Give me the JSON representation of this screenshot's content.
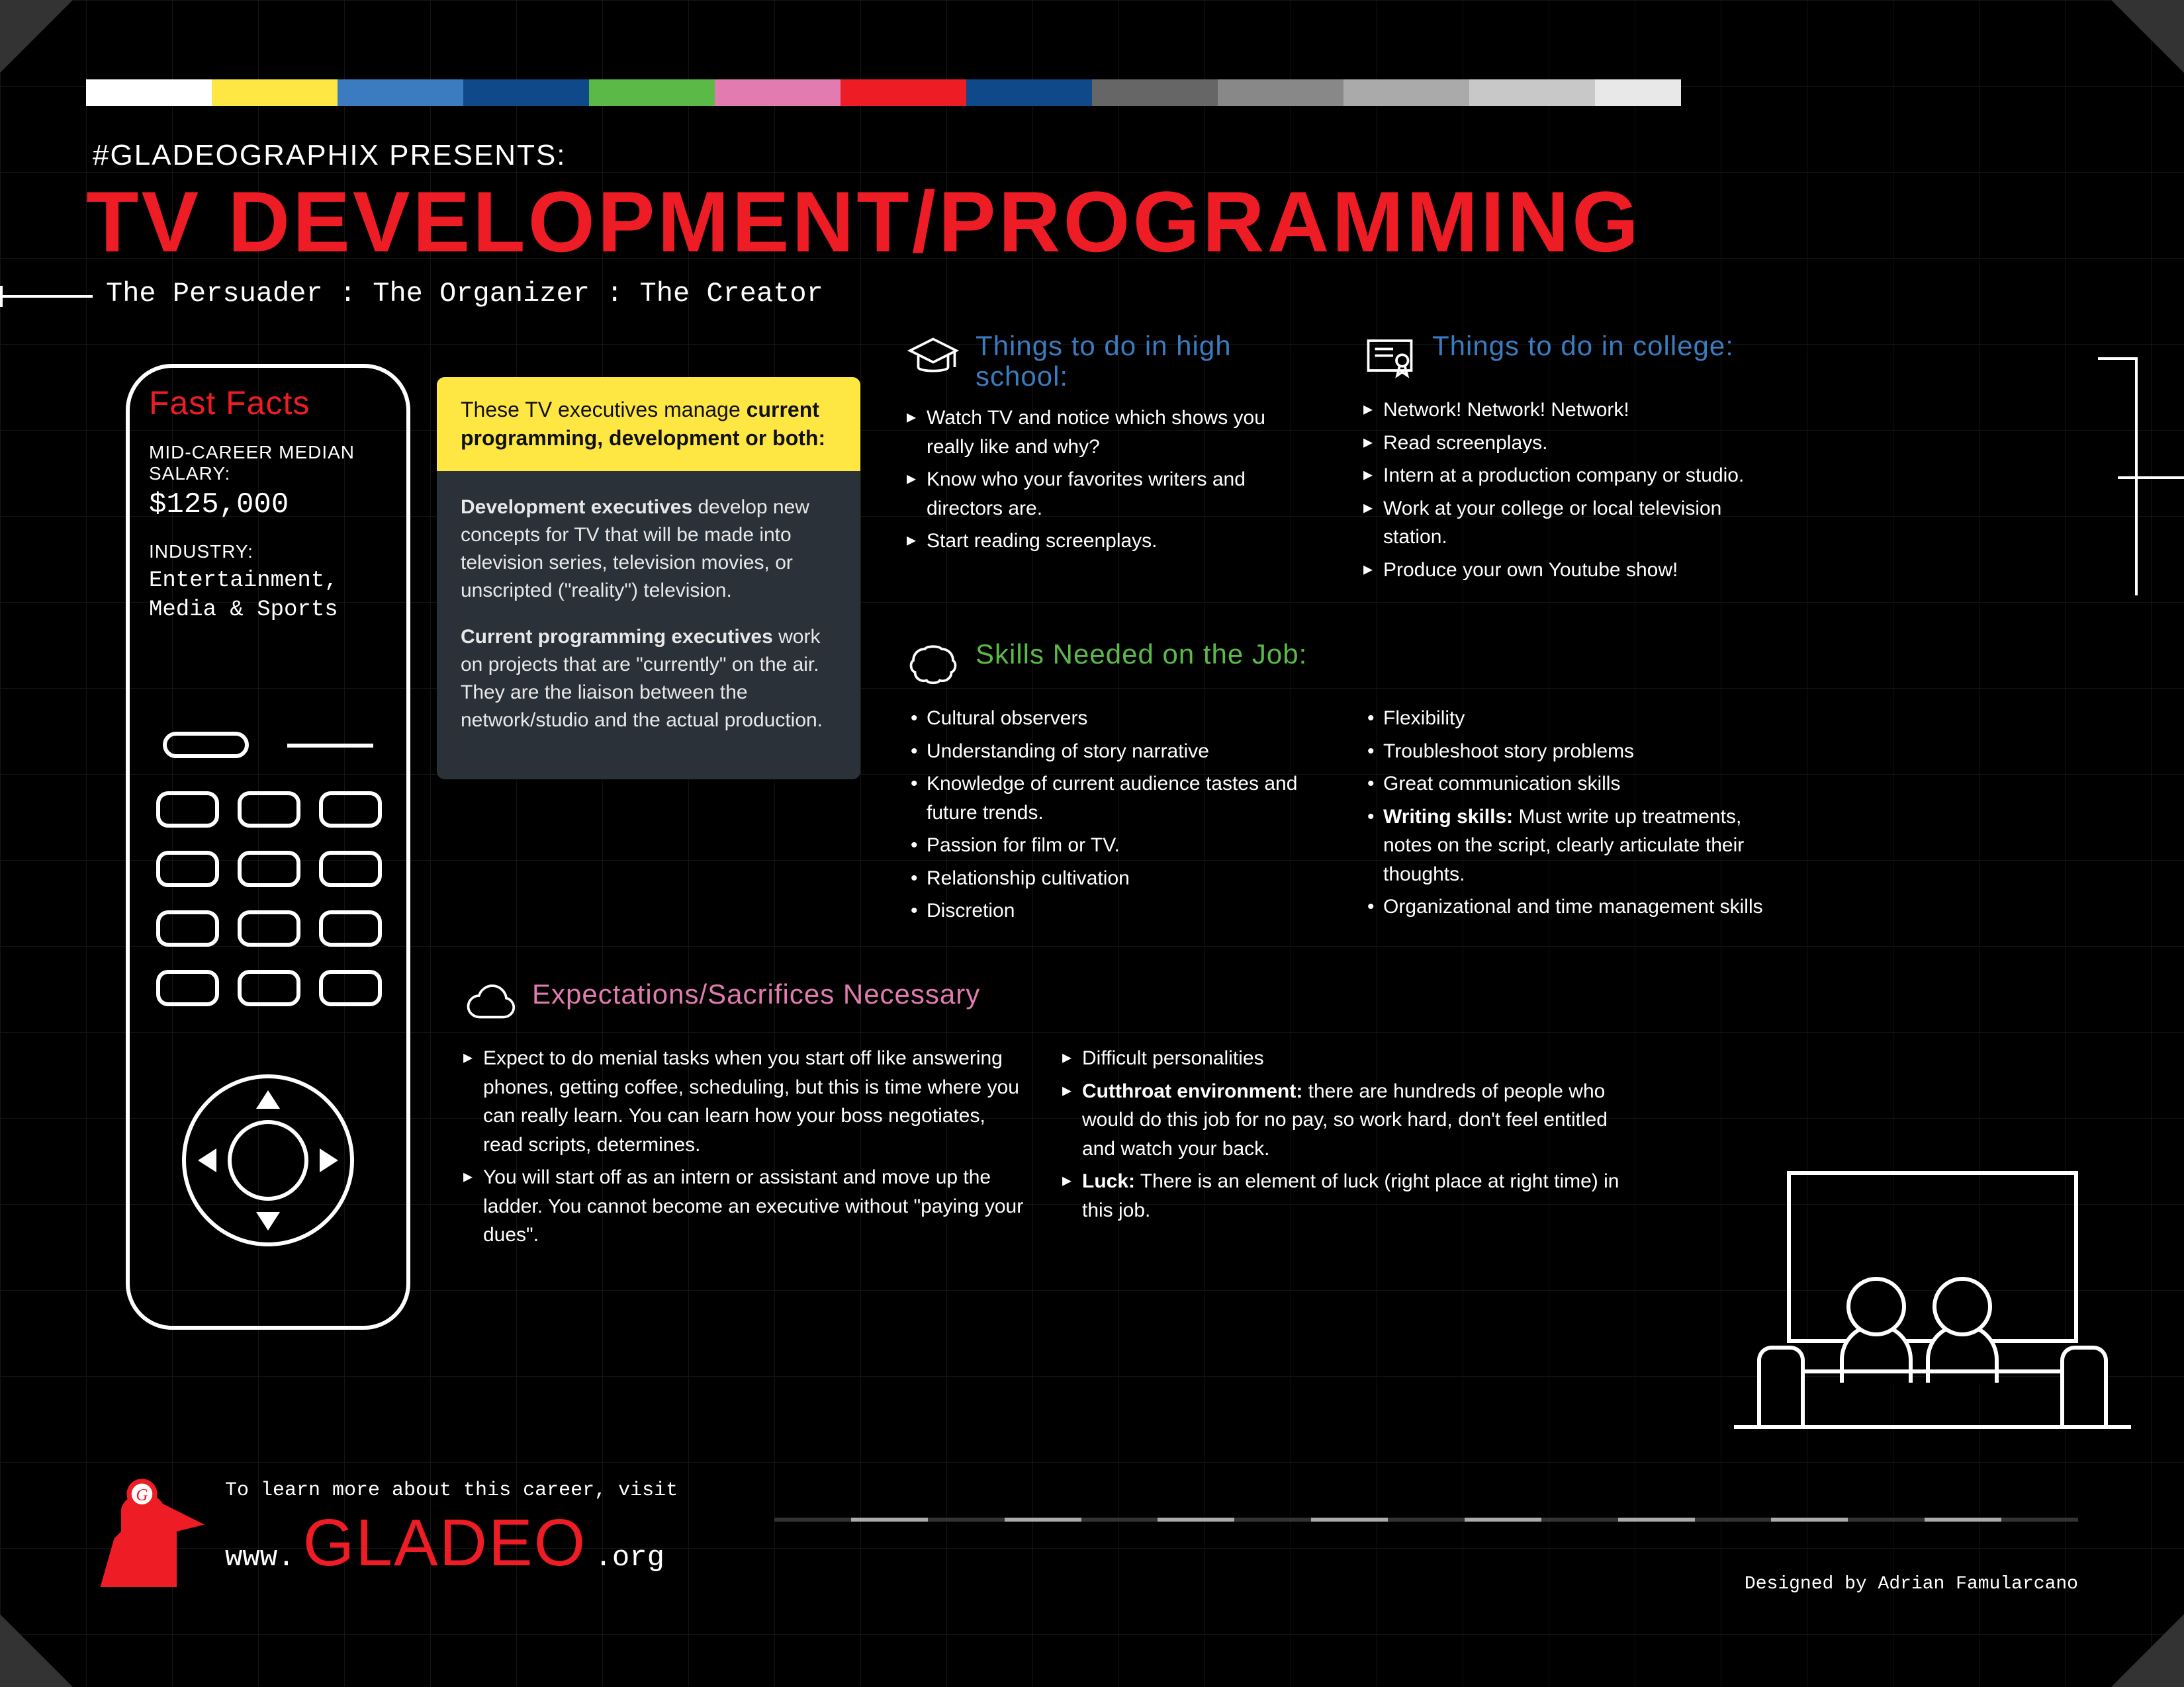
{
  "colorbar": {
    "segments": [
      {
        "color": "#ffffff",
        "w": 190
      },
      {
        "color": "#ffe743",
        "w": 190
      },
      {
        "color": "#3b7bbf",
        "w": 190
      },
      {
        "color": "#10498a",
        "w": 190
      },
      {
        "color": "#5bba47",
        "w": 190
      },
      {
        "color": "#e17bb0",
        "w": 190
      },
      {
        "color": "#ee1c25",
        "w": 190
      },
      {
        "color": "#10498a",
        "w": 190
      },
      {
        "color": "#666666",
        "w": 190
      },
      {
        "color": "#888888",
        "w": 190
      },
      {
        "color": "#aaaaaa",
        "w": 190
      },
      {
        "color": "#c8c8c8",
        "w": 190
      },
      {
        "color": "#e8e8e8",
        "w": 130
      }
    ]
  },
  "header": {
    "presents": "#GLADEOGRAPHIX PRESENTS:",
    "title": "TV DEVELOPMENT/PROGRAMMING",
    "subtitle": "The Persuader : The Organizer : The Creator"
  },
  "facts": {
    "heading": "Fast Facts",
    "salary_label": "Mid-Career Median Salary:",
    "salary_value": "$125,000",
    "industry_label": "Industry:",
    "industry_value": "Entertainment, Media & Sports"
  },
  "desc": {
    "lead_pre": "These TV executives manage ",
    "lead_bold": "current programming, development or both:",
    "dev_title": "Development executives",
    "dev_body": " develop new concepts for TV that will be made into television series, television movies, or unscripted (\"reality\") television.",
    "cur_title": "Current programming executives",
    "cur_body": " work on projects that are \"currently\" on the air. They are the liaison between the network/studio and the actual production."
  },
  "highschool": {
    "title": "Things to do in high school:",
    "items": [
      "Watch TV and notice which shows you really like and why?",
      "Know who your favorites writers and directors are.",
      "Start reading screenplays."
    ]
  },
  "college": {
    "title": "Things to do in college:",
    "items": [
      "Network! Network! Network!",
      "Read screenplays.",
      "Intern at a production company or studio.",
      "Work at your college or local television station.",
      "Produce your own Youtube show!"
    ]
  },
  "skills": {
    "title": "Skills Needed on the Job:",
    "left": [
      "Cultural observers",
      "Understanding of story narrative",
      "Knowledge of current audience tastes and future trends.",
      "Passion for film or TV.",
      "Relationship cultivation",
      "Discretion"
    ],
    "right_plain": [
      "Flexibility",
      "Troubleshoot story problems",
      "Great communication skills"
    ],
    "writing_bold": "Writing skills:",
    "writing_rest": " Must write up treatments, notes on the script, clearly articulate their thoughts.",
    "right_tail": [
      "Organizational and time management skills"
    ]
  },
  "expect": {
    "title": "Expectations/Sacrifices Necessary",
    "left": [
      "Expect to do menial tasks when you start off like answering phones, getting coffee, scheduling, but this is time where you can really learn. You can learn how your boss negotiates, read scripts, determines.",
      "You will start off as an intern or assistant and move up the ladder. You cannot become an executive without \"paying your dues\"."
    ],
    "right_plain": [
      "Difficult personalities"
    ],
    "cut_bold": "Cutthroat environment:",
    "cut_rest": "  there are hundreds of people who would do this job for no pay, so work hard, don't feel entitled and watch your back.",
    "luck_bold": "Luck:",
    "luck_rest": " There is an element of luck (right place at right time) in this job."
  },
  "footer": {
    "learn": "To learn more about this career, visit",
    "www": "www.",
    "brand": "GLADEO",
    "org": ".org",
    "designer": "Designed by Adrian Famularcano",
    "dash_colors": [
      "#333",
      "#aaa",
      "#333",
      "#aaa",
      "#333",
      "#aaa",
      "#333",
      "#aaa",
      "#333",
      "#aaa",
      "#333",
      "#aaa",
      "#333",
      "#aaa",
      "#333",
      "#aaa",
      "#333"
    ]
  }
}
